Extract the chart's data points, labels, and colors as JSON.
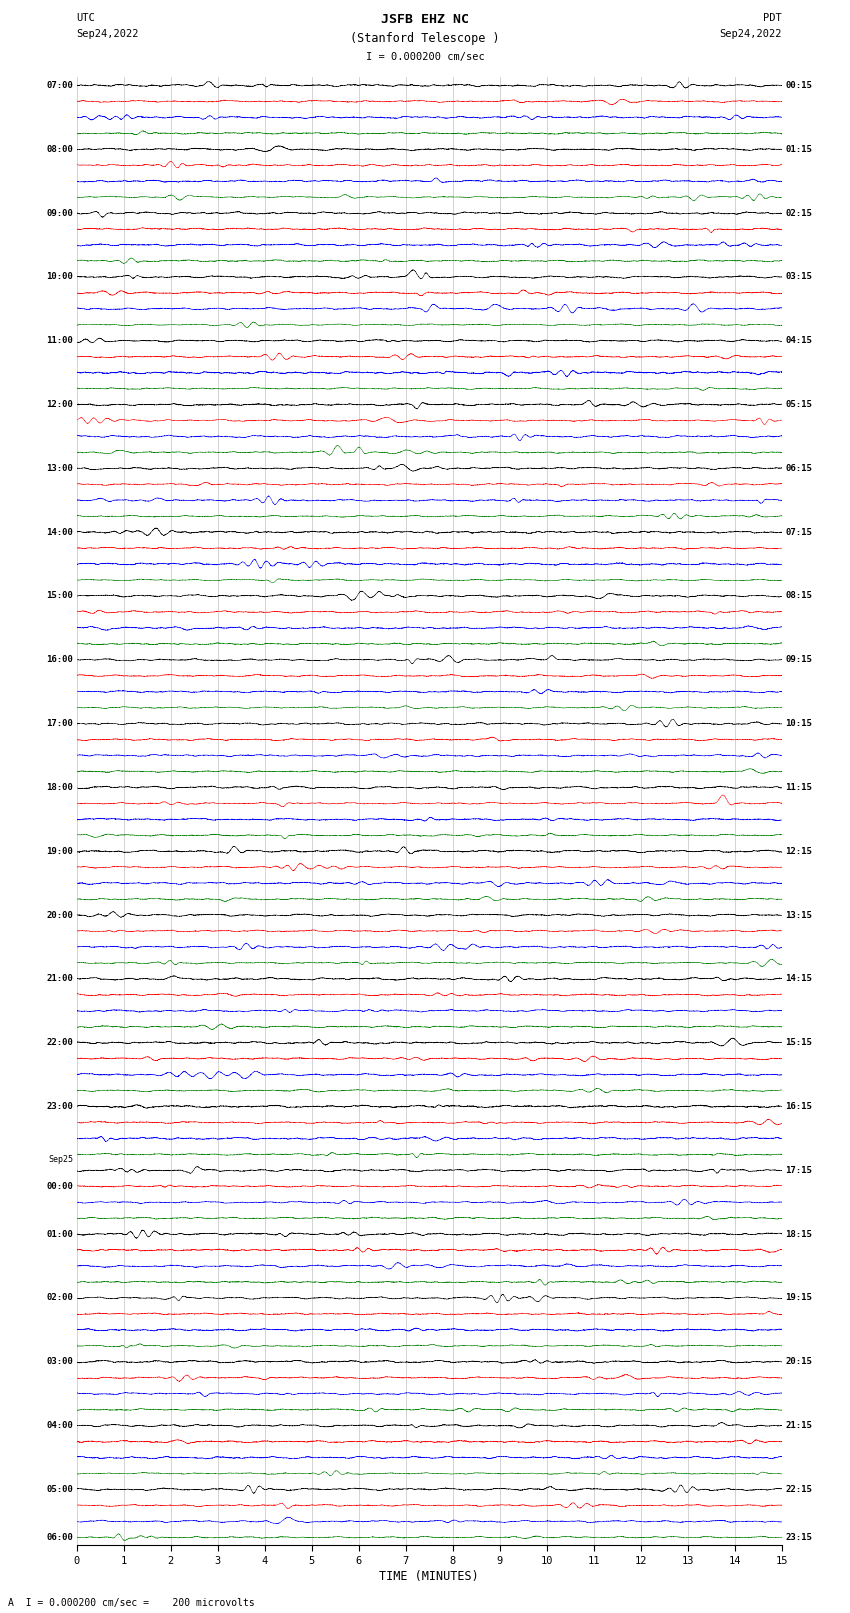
{
  "title_line1": "JSFB EHZ NC",
  "title_line2": "(Stanford Telescope )",
  "scale_text": "I = 0.000200 cm/sec",
  "left_label_top": "UTC",
  "left_label_date": "Sep24,2022",
  "right_label_top": "PDT",
  "right_label_date": "Sep24,2022",
  "bottom_label": "TIME (MINUTES)",
  "bottom_note": "A  I = 0.000200 cm/sec =    200 microvolts",
  "x_min": 0,
  "x_max": 15,
  "x_ticks": [
    0,
    1,
    2,
    3,
    4,
    5,
    6,
    7,
    8,
    9,
    10,
    11,
    12,
    13,
    14,
    15
  ],
  "figure_width": 8.5,
  "figure_height": 16.13,
  "bg_color": "white",
  "trace_color_cycle": [
    "black",
    "red",
    "blue",
    "green"
  ],
  "left_times_utc": [
    "07:00",
    "",
    "",
    "",
    "08:00",
    "",
    "",
    "",
    "09:00",
    "",
    "",
    "",
    "10:00",
    "",
    "",
    "",
    "11:00",
    "",
    "",
    "",
    "12:00",
    "",
    "",
    "",
    "13:00",
    "",
    "",
    "",
    "14:00",
    "",
    "",
    "",
    "15:00",
    "",
    "",
    "",
    "16:00",
    "",
    "",
    "",
    "17:00",
    "",
    "",
    "",
    "18:00",
    "",
    "",
    "",
    "19:00",
    "",
    "",
    "",
    "20:00",
    "",
    "",
    "",
    "21:00",
    "",
    "",
    "",
    "22:00",
    "",
    "",
    "",
    "23:00",
    "",
    "",
    "",
    "Sep25",
    "00:00",
    "",
    "",
    "01:00",
    "",
    "",
    "",
    "02:00",
    "",
    "",
    "",
    "03:00",
    "",
    "",
    "",
    "04:00",
    "",
    "",
    "",
    "05:00",
    "",
    "",
    "06:00"
  ],
  "right_times_pdt": [
    "00:15",
    "",
    "",
    "",
    "01:15",
    "",
    "",
    "",
    "02:15",
    "",
    "",
    "",
    "03:15",
    "",
    "",
    "",
    "04:15",
    "",
    "",
    "",
    "05:15",
    "",
    "",
    "",
    "06:15",
    "",
    "",
    "",
    "07:15",
    "",
    "",
    "",
    "08:15",
    "",
    "",
    "",
    "09:15",
    "",
    "",
    "",
    "10:15",
    "",
    "",
    "",
    "11:15",
    "",
    "",
    "",
    "12:15",
    "",
    "",
    "",
    "13:15",
    "",
    "",
    "",
    "14:15",
    "",
    "",
    "",
    "15:15",
    "",
    "",
    "",
    "16:15",
    "",
    "",
    "",
    "17:15",
    "",
    "",
    "",
    "18:15",
    "",
    "",
    "",
    "19:15",
    "",
    "",
    "",
    "20:15",
    "",
    "",
    "",
    "21:15",
    "",
    "",
    "",
    "22:15",
    "",
    "",
    "23:15"
  ],
  "seed": 12345,
  "num_rows": 92
}
